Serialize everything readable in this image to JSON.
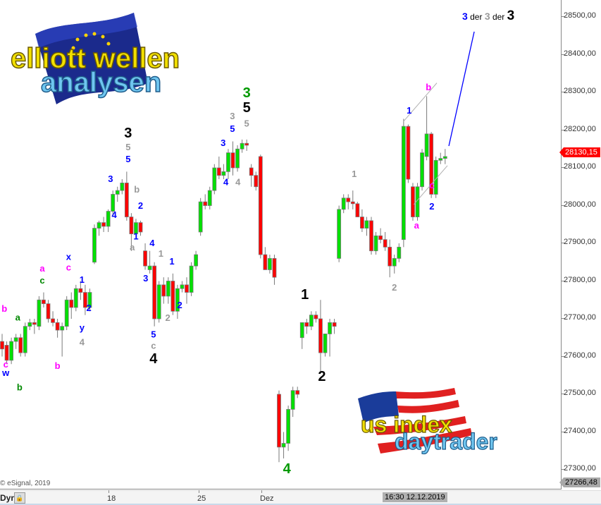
{
  "chart_data": {
    "type": "candlestick",
    "title": "",
    "x_tick_labels": [
      "18",
      "25",
      "Dez"
    ],
    "y_tick_labels": [
      "28500,00",
      "28400,00",
      "28300,00",
      "28200,00",
      "28100,00",
      "28000,00",
      "27900,00",
      "27800,00",
      "27700,00",
      "27600,00",
      "27500,00",
      "27400,00",
      "27300,00"
    ],
    "ylim": [
      27266,
      28540
    ],
    "grid": false,
    "colors": {
      "up": "#00e000",
      "down": "#ff0000",
      "wick": "#7a7a7a",
      "channel": "#b0b0b0",
      "projection": "#0000ff"
    },
    "candles_ohlc": [
      [
        27640,
        27660,
        27600,
        27620
      ],
      [
        27630,
        27640,
        27580,
        27590
      ],
      [
        27590,
        27650,
        27580,
        27640
      ],
      [
        27640,
        27660,
        27620,
        27650
      ],
      [
        27650,
        27660,
        27600,
        27610
      ],
      [
        27610,
        27690,
        27600,
        27680
      ],
      [
        27680,
        27700,
        27670,
        27690
      ],
      [
        27690,
        27700,
        27660,
        27685
      ],
      [
        27680,
        27760,
        27670,
        27750
      ],
      [
        27750,
        27770,
        27730,
        27740
      ],
      [
        27740,
        27750,
        27690,
        27700
      ],
      [
        27700,
        27720,
        27680,
        27690
      ],
      [
        27690,
        27700,
        27650,
        27670
      ],
      [
        27670,
        27690,
        27600,
        27680
      ],
      [
        27680,
        27760,
        27670,
        27750
      ],
      [
        27750,
        27770,
        27700,
        27730
      ],
      [
        27730,
        27790,
        27720,
        27780
      ],
      [
        27780,
        27800,
        27750,
        27770
      ],
      [
        27770,
        27790,
        27710,
        27730
      ],
      [
        27730,
        27780,
        27720,
        27770
      ],
      [
        27850,
        27950,
        27845,
        27940
      ],
      [
        27940,
        27960,
        27920,
        27955
      ],
      [
        27955,
        27970,
        27930,
        27945
      ],
      [
        27945,
        27990,
        27930,
        27985
      ],
      [
        27985,
        28040,
        27970,
        28030
      ],
      [
        28030,
        28050,
        28010,
        28040
      ],
      [
        28040,
        28070,
        28030,
        28060
      ],
      [
        28060,
        28090,
        27960,
        27970
      ],
      [
        27970,
        27980,
        27880,
        27925
      ],
      [
        27925,
        27965,
        27910,
        27955
      ],
      [
        27955,
        27960,
        27920,
        27930
      ],
      [
        27880,
        27900,
        27830,
        27840
      ],
      [
        27830,
        27880,
        27820,
        27840
      ],
      [
        27840,
        27850,
        27680,
        27700
      ],
      [
        27700,
        27800,
        27690,
        27790
      ],
      [
        27790,
        27810,
        27740,
        27760
      ],
      [
        27760,
        27810,
        27740,
        27800
      ],
      [
        27800,
        27820,
        27710,
        27720
      ],
      [
        27720,
        27790,
        27700,
        27780
      ],
      [
        27780,
        27800,
        27770,
        27790
      ],
      [
        27790,
        27810,
        27740,
        27770
      ],
      [
        27770,
        27850,
        27760,
        27840
      ],
      [
        27840,
        27880,
        27830,
        27870
      ],
      [
        27930,
        28020,
        27920,
        28010
      ],
      [
        28010,
        28030,
        27990,
        28000
      ],
      [
        28000,
        28050,
        27990,
        28040
      ],
      [
        28040,
        28110,
        28030,
        28100
      ],
      [
        28100,
        28130,
        28070,
        28080
      ],
      [
        28080,
        28110,
        28070,
        28090
      ],
      [
        28090,
        28150,
        28070,
        28140
      ],
      [
        28140,
        28170,
        28080,
        28100
      ],
      [
        28100,
        28160,
        28090,
        28150
      ],
      [
        28150,
        28175,
        28140,
        28165
      ],
      [
        28165,
        28175,
        28145,
        28160
      ],
      [
        28100,
        28110,
        28050,
        28080
      ],
      [
        28080,
        28090,
        28040,
        28050
      ],
      [
        28130,
        28135,
        27860,
        27870
      ],
      [
        27870,
        27890,
        27830,
        27830
      ],
      [
        27830,
        27870,
        27820,
        27860
      ],
      [
        27860,
        27870,
        27790,
        27810
      ],
      [
        27500,
        27510,
        27320,
        27360
      ],
      [
        27360,
        27400,
        27330,
        27370
      ],
      [
        27370,
        27470,
        27350,
        27460
      ],
      [
        27460,
        27520,
        27440,
        27510
      ],
      [
        27510,
        27520,
        27490,
        27500
      ],
      [
        27650,
        27690,
        27620,
        27690
      ],
      [
        27690,
        27700,
        27660,
        27680
      ],
      [
        27680,
        27720,
        27670,
        27710
      ],
      [
        27710,
        27720,
        27690,
        27700
      ],
      [
        27700,
        27750,
        27560,
        27610
      ],
      [
        27610,
        27660,
        27600,
        27660
      ],
      [
        27660,
        27700,
        27600,
        27690
      ],
      [
        27690,
        27700,
        27660,
        27680
      ],
      [
        27860,
        28000,
        27850,
        27990
      ],
      [
        27990,
        28030,
        27980,
        28020
      ],
      [
        28020,
        28030,
        27990,
        28010
      ],
      [
        28010,
        28040,
        27990,
        28005
      ],
      [
        28005,
        28010,
        27970,
        27970
      ],
      [
        27970,
        27990,
        27930,
        27940
      ],
      [
        27940,
        27970,
        27920,
        27960
      ],
      [
        27960,
        27970,
        27870,
        27880
      ],
      [
        27880,
        27930,
        27870,
        27920
      ],
      [
        27920,
        27940,
        27900,
        27910
      ],
      [
        27910,
        27930,
        27880,
        27890
      ],
      [
        27890,
        27910,
        27810,
        27840
      ],
      [
        27840,
        27870,
        27820,
        27860
      ],
      [
        27860,
        27900,
        27850,
        27890
      ],
      [
        27910,
        28230,
        27890,
        28210
      ],
      [
        28210,
        28215,
        28060,
        28070
      ],
      [
        28050,
        28060,
        27960,
        27970
      ],
      [
        27970,
        28060,
        27960,
        28050
      ],
      [
        28050,
        28150,
        28040,
        28140
      ],
      [
        28130,
        28290,
        28120,
        28190
      ],
      [
        28190,
        28195,
        28020,
        28030
      ],
      [
        28030,
        28130,
        28020,
        28120
      ],
      [
        28120,
        28140,
        28110,
        28125
      ],
      [
        28125,
        28150,
        28110,
        28130
      ]
    ],
    "wave_labels": [
      {
        "t": "b",
        "c": "#ff00ff",
        "bar": 0.5,
        "p": 27728
      },
      {
        "t": "c",
        "c": "#ff00ff",
        "bar": 0.8,
        "p": 27580
      },
      {
        "t": "w",
        "c": "#0000ff",
        "bar": 0.8,
        "p": 27558
      },
      {
        "t": "b",
        "c": "#008800",
        "bar": 3.8,
        "p": 27520
      },
      {
        "t": "a",
        "c": "#008800",
        "bar": 3.4,
        "p": 27705
      },
      {
        "t": "c",
        "c": "#008800",
        "bar": 8.7,
        "p": 27803
      },
      {
        "t": "a",
        "c": "#ff00ff",
        "bar": 8.7,
        "p": 27835
      },
      {
        "t": "b",
        "c": "#ff00ff",
        "bar": 12,
        "p": 27577
      },
      {
        "t": "x",
        "c": "#0000ff",
        "bar": 14.4,
        "p": 27865
      },
      {
        "t": "c",
        "c": "#ff00ff",
        "bar": 14.4,
        "p": 27837
      },
      {
        "t": "1",
        "c": "#0000ff",
        "bar": 17.3,
        "p": 27805
      },
      {
        "t": "2",
        "c": "#0000ff",
        "bar": 18.8,
        "p": 27730
      },
      {
        "t": "y",
        "c": "#0000ff",
        "bar": 17.3,
        "p": 27678
      },
      {
        "t": "4",
        "c": "#999999",
        "bar": 17.3,
        "p": 27639
      },
      {
        "t": "3",
        "c": "#0000ff",
        "bar": 23.5,
        "p": 28072
      },
      {
        "t": "4",
        "c": "#0000ff",
        "bar": 24.3,
        "p": 27977
      },
      {
        "t": "3",
        "c": "#000000",
        "bar": 27.3,
        "p": 28193,
        "big": true
      },
      {
        "t": "5",
        "c": "#999999",
        "bar": 27.3,
        "p": 28156
      },
      {
        "t": "5",
        "c": "#0000ff",
        "bar": 27.3,
        "p": 28124
      },
      {
        "t": "b",
        "c": "#999999",
        "bar": 29.2,
        "p": 28044
      },
      {
        "t": "2",
        "c": "#0000ff",
        "bar": 30,
        "p": 28001
      },
      {
        "t": "1",
        "c": "#0000ff",
        "bar": 29,
        "p": 27920
      },
      {
        "t": "a",
        "c": "#999999",
        "bar": 28.2,
        "p": 27891
      },
      {
        "t": "4",
        "c": "#0000ff",
        "bar": 32.5,
        "p": 27902
      },
      {
        "t": "1",
        "c": "#999999",
        "bar": 34.4,
        "p": 27874
      },
      {
        "t": "3",
        "c": "#0000ff",
        "bar": 31.1,
        "p": 27808
      },
      {
        "t": "1",
        "c": "#0000ff",
        "bar": 36.8,
        "p": 27853
      },
      {
        "t": "2",
        "c": "#0000ff",
        "bar": 38.5,
        "p": 27737
      },
      {
        "t": "2",
        "c": "#999999",
        "bar": 35.9,
        "p": 27704
      },
      {
        "t": "5",
        "c": "#0000ff",
        "bar": 32.8,
        "p": 27660
      },
      {
        "t": "c",
        "c": "#999999",
        "bar": 32.8,
        "p": 27630
      },
      {
        "t": "4",
        "c": "#000000",
        "bar": 32.8,
        "p": 27595,
        "big": true
      },
      {
        "t": "3",
        "c": "#0000ff",
        "bar": 47.9,
        "p": 28167
      },
      {
        "t": "5",
        "c": "#0000ff",
        "bar": 49.9,
        "p": 28205
      },
      {
        "t": "3",
        "c": "#999999",
        "bar": 49.9,
        "p": 28238
      },
      {
        "t": "5",
        "c": "#999999",
        "bar": 53,
        "p": 28219
      },
      {
        "t": "3",
        "c": "#009900",
        "bar": 53,
        "p": 28300,
        "big": true
      },
      {
        "t": "5",
        "c": "#000000",
        "bar": 53,
        "p": 28261,
        "big": true
      },
      {
        "t": "4",
        "c": "#0000ff",
        "bar": 48.5,
        "p": 28064
      },
      {
        "t": "4",
        "c": "#999999",
        "bar": 51.1,
        "p": 28064
      },
      {
        "t": "1",
        "c": "#000000",
        "bar": 65.6,
        "p": 27765,
        "big": true
      },
      {
        "t": "2",
        "c": "#000000",
        "bar": 69.3,
        "p": 27549,
        "big": true
      },
      {
        "t": "4",
        "c": "#009900",
        "bar": 61.7,
        "p": 27304,
        "big": true
      },
      {
        "t": "1",
        "c": "#999999",
        "bar": 76.3,
        "p": 28085
      },
      {
        "t": "2",
        "c": "#999999",
        "bar": 85,
        "p": 27784
      },
      {
        "t": "1",
        "c": "#0000ff",
        "bar": 88.2,
        "p": 28253
      },
      {
        "t": "b",
        "c": "#ff00ff",
        "bar": 92.4,
        "p": 28315
      },
      {
        "t": "a",
        "c": "#ff00ff",
        "bar": 89.8,
        "p": 27949
      },
      {
        "t": "c",
        "c": "#ff00ff",
        "bar": 93.1,
        "p": 28055
      },
      {
        "t": "2",
        "c": "#0000ff",
        "bar": 93.1,
        "p": 27999
      }
    ],
    "channel_lines": [
      {
        "from": [
          86.9,
          28222
        ],
        "to": [
          94.2,
          28325
        ]
      },
      {
        "from": [
          89.2,
          28003
        ],
        "to": [
          96.5,
          28106
        ]
      }
    ],
    "projection_line": {
      "from": [
        96.8,
        28158
      ],
      "to": [
        102.3,
        28461
      ]
    },
    "headline": [
      {
        "t": "3",
        "c": "#0000ff"
      },
      {
        "t": " der ",
        "c": "#000000"
      },
      {
        "t": "3",
        "c": "#999999"
      },
      {
        "t": " der ",
        "c": "#000000"
      },
      {
        "t": "3",
        "c": "#000000"
      }
    ]
  },
  "price_axis": {
    "last_price": "28130,15",
    "low_price": "27266,48"
  },
  "time_axis": {
    "dyn_label": "Dyn",
    "lock_icon": "lock-icon",
    "cursor_time": "16:30 12.12.2019"
  },
  "copyright": "© eSignal, 2019",
  "logos": {
    "top_left": "elliott wellen analysen",
    "bottom": "us index daytrader"
  }
}
